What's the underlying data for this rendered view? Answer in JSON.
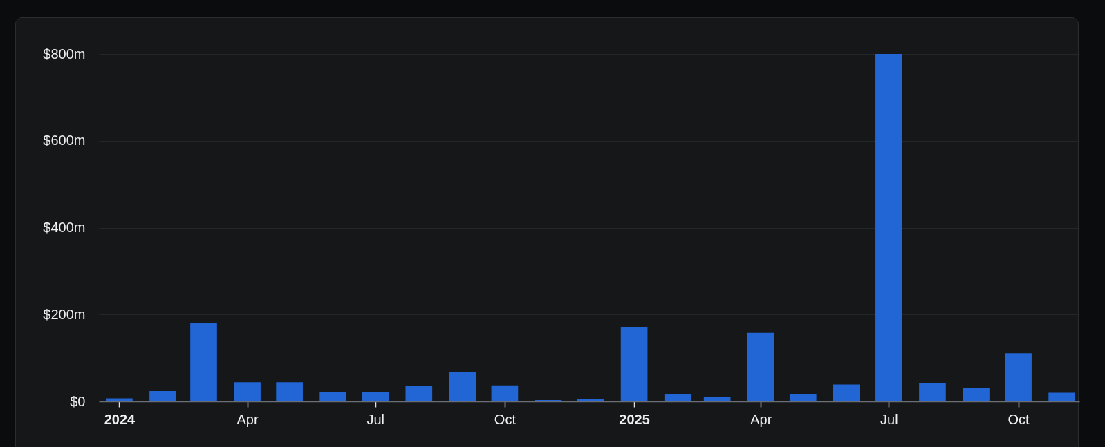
{
  "chart_data": {
    "type": "bar",
    "x": [
      "2024-01",
      "2024-02",
      "2024-03",
      "2024-04",
      "2024-05",
      "2024-06",
      "2024-07",
      "2024-08",
      "2024-09",
      "2024-10",
      "2024-11",
      "2024-12",
      "2025-01",
      "2025-02",
      "2025-03",
      "2025-04",
      "2025-05",
      "2025-06",
      "2025-07",
      "2025-08",
      "2025-09",
      "2025-10",
      "2025-11"
    ],
    "values": [
      7,
      24,
      181,
      44,
      44,
      21,
      22,
      35,
      68,
      37,
      3,
      6,
      171,
      17,
      11,
      158,
      16,
      39,
      800,
      42,
      31,
      111,
      20
    ],
    "color": "#2266d6",
    "xlim": [
      "2023-12-20",
      "2025-11-11"
    ],
    "xticks": [
      {
        "value": "2024-01",
        "label": "2024"
      },
      {
        "value": "2024-04",
        "label": "Apr"
      },
      {
        "value": "2024-07",
        "label": "Jul"
      },
      {
        "value": "2024-10",
        "label": "Oct"
      },
      {
        "value": "2025-01",
        "label": "2025"
      },
      {
        "value": "2025-04",
        "label": "Apr"
      },
      {
        "value": "2025-07",
        "label": "Jul"
      },
      {
        "value": "2025-10",
        "label": "Oct"
      }
    ],
    "ylim": [
      0,
      800
    ],
    "yticks": [
      {
        "value": 0,
        "label": "$0"
      },
      {
        "value": 200,
        "label": "$200m"
      },
      {
        "value": 400,
        "label": "$400m"
      },
      {
        "value": 600,
        "label": "$600m"
      },
      {
        "value": 800,
        "label": "$800m"
      }
    ],
    "grid": "y"
  }
}
